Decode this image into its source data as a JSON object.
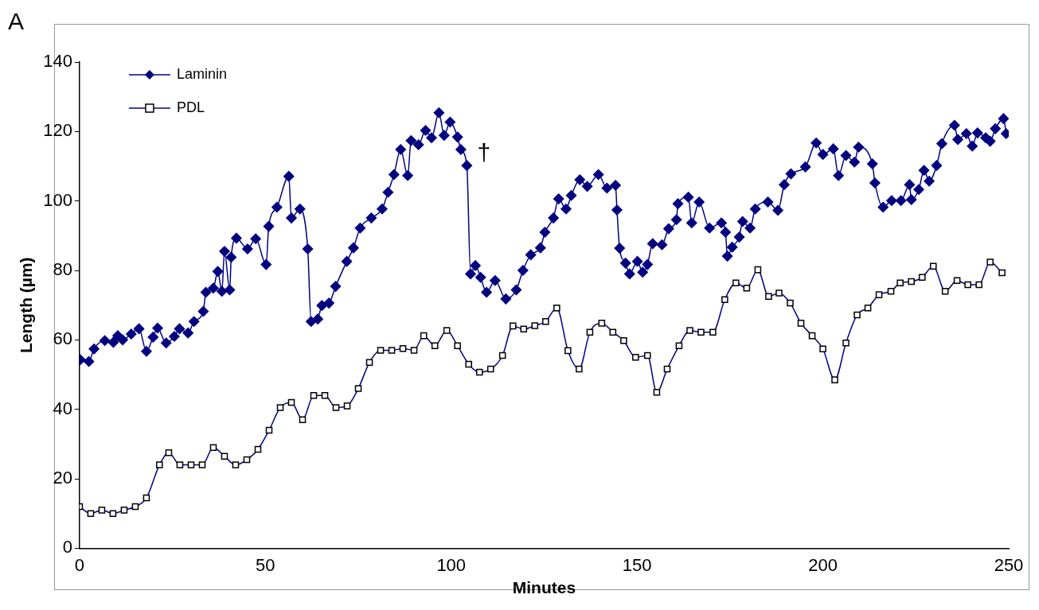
{
  "chart_data": {
    "type": "line",
    "xlabel": "Minutes",
    "ylabel": "Length (µm)",
    "xlim": [
      0,
      250
    ],
    "xticks": [
      0,
      50,
      100,
      150,
      200,
      250
    ],
    "ylim": [
      0,
      140
    ],
    "yticks": [
      0,
      20,
      40,
      60,
      80,
      100,
      120,
      140
    ],
    "grid": false,
    "legend": "top left",
    "line_style": "solid",
    "annotations": [
      "A",
      "†"
    ],
    "series": [
      {
        "name": "Laminin",
        "color": "#000080",
        "marker": "diamond",
        "x": [
          0.2,
          2.5,
          3.9,
          6.8,
          9.1,
          10.3,
          11.6,
          13.9,
          16,
          18,
          19.8,
          21,
          23.3,
          25.5,
          26.9,
          29.2,
          30.8,
          33.3,
          34,
          36,
          37.2,
          38.3,
          39,
          40.4,
          40.8,
          42.2,
          45.2,
          47.4,
          50.2,
          50.9,
          53.1,
          56.3,
          57,
          59.3,
          61.4,
          62.3,
          64.1,
          65.2,
          67.1,
          68.9,
          71.9,
          73.7,
          75.5,
          78.5,
          81.4,
          83,
          84.6,
          86.4,
          88.3,
          89.2,
          91.2,
          93.1,
          94.7,
          96.7,
          98.1,
          99.7,
          101.7,
          102.6,
          104.2,
          105.2,
          106.5,
          107.9,
          109.5,
          111.8,
          114.7,
          117.5,
          119.3,
          121.4,
          124,
          125.2,
          127.5,
          128.9,
          130.9,
          132.3,
          134.6,
          136.6,
          139.6,
          141.9,
          144.2,
          144.6,
          145.3,
          146.9,
          148,
          150.1,
          151.5,
          152.8,
          154.2,
          156.7,
          158.5,
          160.6,
          161,
          163.8,
          164.7,
          166.7,
          169.5,
          172.7,
          173.8,
          174.3,
          175.6,
          177.5,
          178.4,
          180.4,
          181.8,
          185.2,
          187.9,
          189.6,
          191.4,
          195.3,
          198.2,
          200,
          202.8,
          204.2,
          206.2,
          208.5,
          209.6,
          213.3,
          214,
          216.2,
          218.5,
          221,
          223.3,
          223.8,
          225.8,
          227.2,
          228.6,
          230.6,
          232,
          235.4,
          236.3,
          238.6,
          240.2,
          241.6,
          243.8,
          245,
          246.4,
          248.6,
          249.3
        ],
        "values": [
          54.3,
          53.8,
          57.4,
          59.8,
          59.3,
          61.2,
          60,
          61.7,
          63.2,
          56.7,
          60.8,
          63.4,
          59.1,
          61,
          63.2,
          62,
          65.3,
          68.2,
          73.7,
          74.9,
          79.7,
          74,
          85.5,
          74.4,
          83.8,
          89.3,
          86.2,
          89.1,
          81.7,
          92.7,
          98.2,
          107.1,
          95.1,
          97.7,
          86.2,
          65.3,
          66,
          69.9,
          70.6,
          75.4,
          82.6,
          86.5,
          92.2,
          95.1,
          97.7,
          102.5,
          107.6,
          114.8,
          107.3,
          117.4,
          116.2,
          120.3,
          118.2,
          125.4,
          118.9,
          122.7,
          118.4,
          114.8,
          110.2,
          79,
          81.4,
          78,
          73.7,
          77.1,
          71.8,
          74.4,
          80,
          84.5,
          86.5,
          91,
          95.1,
          100.6,
          97.7,
          101.6,
          106.1,
          104.2,
          107.6,
          103.7,
          104.5,
          97.4,
          86.4,
          82.1,
          79,
          82.6,
          79.5,
          81.7,
          87.7,
          87.4,
          92,
          94.6,
          99.2,
          101.1,
          93.7,
          99.7,
          92.2,
          93.7,
          91,
          84.1,
          86.7,
          89.6,
          94.1,
          92.2,
          97.7,
          99.7,
          97.3,
          104.7,
          107.8,
          109.8,
          116.7,
          113.4,
          115,
          107.3,
          113.1,
          111.2,
          115.5,
          110.7,
          105.2,
          98.2,
          100.1,
          100.1,
          104.7,
          100.4,
          103.3,
          108.8,
          105.7,
          110.2,
          116.5,
          121.8,
          117.7,
          119.4,
          115.8,
          119.6,
          118.2,
          117.2,
          120.8,
          123.7,
          119.4
        ]
      },
      {
        "name": "PDL",
        "color": "#000080",
        "marker": "square",
        "x": [
          0,
          3,
          6,
          9,
          12,
          15,
          18,
          21.5,
          24,
          27,
          30,
          33,
          36,
          39,
          42,
          45,
          48,
          51,
          54,
          57,
          60,
          63,
          66,
          69,
          72,
          75,
          78,
          81,
          84,
          87,
          90,
          92.6,
          95.6,
          98.8,
          101.7,
          104.7,
          107.6,
          110.6,
          113.8,
          116.6,
          119.5,
          122.5,
          125.4,
          128.4,
          131.4,
          134.4,
          137.3,
          140.5,
          143.5,
          146.4,
          149.6,
          152.8,
          155.3,
          158.1,
          161.3,
          164.2,
          167.2,
          170.4,
          173.6,
          176.6,
          179.5,
          182.5,
          185.4,
          188.2,
          191.2,
          194.1,
          197.1,
          200,
          203.2,
          206.2,
          209.2,
          212.1,
          215.1,
          218.3,
          220.8,
          223.8,
          226.7,
          229.7,
          232.9,
          236.1,
          239,
          242,
          245,
          248.2
        ],
        "values": [
          12,
          10,
          11,
          10,
          11,
          12,
          14.5,
          24,
          27.5,
          24,
          24,
          24,
          29,
          26.5,
          24,
          25.5,
          28.5,
          34,
          40.5,
          42,
          37,
          44,
          44,
          40.5,
          41,
          46,
          53.5,
          57,
          57,
          57.5,
          57,
          61.2,
          58.3,
          62.7,
          58.3,
          53,
          50.7,
          51.6,
          55.5,
          64,
          63.1,
          64.1,
          65.3,
          69.2,
          56.9,
          51.6,
          62.2,
          64.8,
          62.2,
          59.8,
          55,
          55.5,
          44.9,
          51.6,
          58.3,
          62.7,
          62.2,
          62.2,
          71.6,
          76.4,
          74.9,
          80.2,
          72.5,
          73.5,
          70.6,
          64.8,
          61.2,
          57.4,
          48.5,
          59.1,
          67.2,
          69.2,
          73,
          74,
          76.4,
          76.8,
          78,
          81.2,
          74,
          77.1,
          75.9,
          75.9,
          82.4,
          79.3
        ]
      }
    ]
  }
}
